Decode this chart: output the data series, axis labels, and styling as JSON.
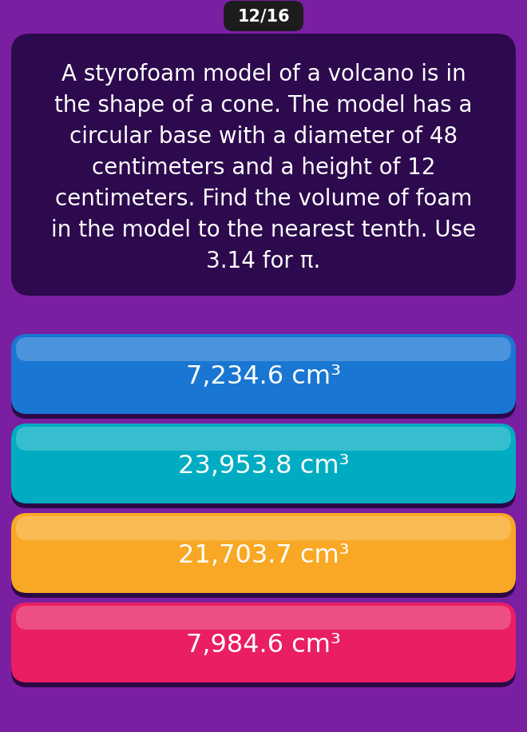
{
  "background_color": "#7B1FA2",
  "badge_text": "12/16",
  "badge_bg": "#1C1C1C",
  "question_text": "A styrofoam model of a volcano is in\nthe shape of a cone. The model has a\ncircular base with a diameter of 48\ncentimeters and a height of 12\ncentimeters. Find the volume of foam\nin the model to the nearest tenth. Use\n3.14 for π.",
  "question_bg": "#2D0A4E",
  "question_text_color": "#FFFFFF",
  "answers": [
    {
      "text": "7,234.6 cm³",
      "color": "#1976D2",
      "top_color": "#42A5F5",
      "bottom_color": "#1565C0"
    },
    {
      "text": "23,953.8 cm³",
      "color": "#00ACC1",
      "top_color": "#4DD0E1",
      "bottom_color": "#00838F"
    },
    {
      "text": "21,703.7 cm³",
      "color": "#F9A825",
      "top_color": "#FFD54F",
      "bottom_color": "#E65100"
    },
    {
      "text": "7,984.6 cm³",
      "color": "#E91E63",
      "top_color": "#F48FB1",
      "bottom_color": "#C2185B"
    }
  ],
  "answer_text_color": "#FFFFFF",
  "figwidth": 6.6,
  "figheight": 9.16,
  "dpi": 100
}
